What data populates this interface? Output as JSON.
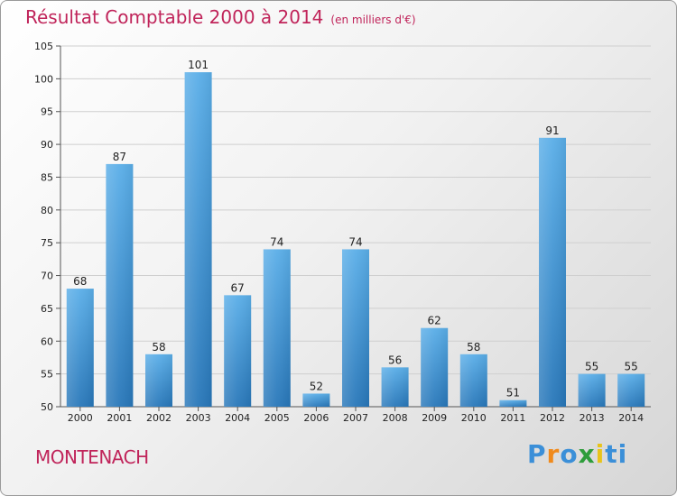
{
  "chart_data": {
    "type": "bar",
    "title": "Résultat Comptable 2000 à 2014",
    "subtitle": "(en milliers d'€)",
    "categories": [
      "2000",
      "2001",
      "2002",
      "2003",
      "2004",
      "2005",
      "2006",
      "2007",
      "2008",
      "2009",
      "2010",
      "2011",
      "2012",
      "2013",
      "2014"
    ],
    "values": [
      68,
      87,
      58,
      101,
      67,
      74,
      52,
      74,
      56,
      62,
      58,
      51,
      91,
      55,
      55
    ],
    "ylim": [
      50,
      105
    ],
    "yticks": [
      50,
      55,
      60,
      65,
      70,
      75,
      80,
      85,
      90,
      95,
      100,
      105
    ],
    "xlabel": "",
    "ylabel": "",
    "grid": true,
    "bar_color": "#3a8fd6"
  },
  "commune": "MONTENACH",
  "brand": {
    "letters": [
      "P",
      "r",
      "o",
      "x",
      "i",
      "t",
      "i"
    ],
    "colors": [
      "#3b8fd8",
      "#f08a1c",
      "#3b8fd8",
      "#2e9d3b",
      "#e8c31a",
      "#3b8fd8",
      "#3b8fd8"
    ]
  },
  "colors": {
    "title": "#c0245a",
    "grid": "#cfcfcf"
  }
}
